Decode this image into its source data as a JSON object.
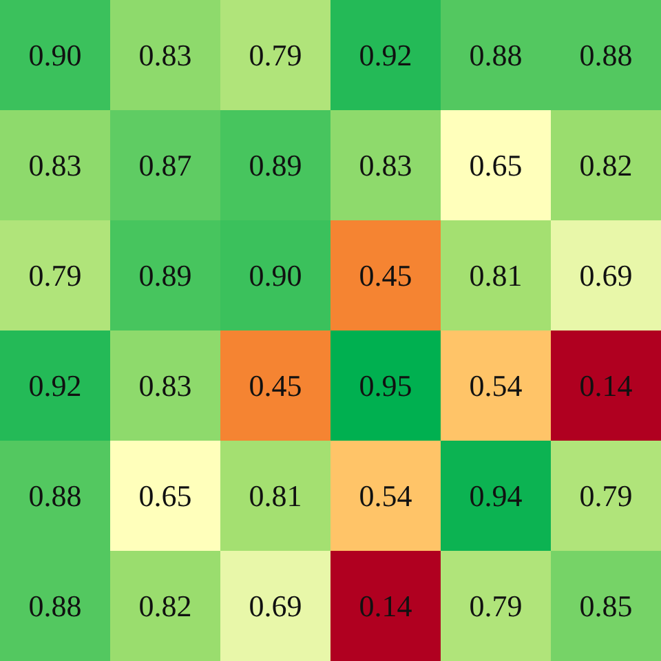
{
  "chart_data": {
    "type": "heatmap",
    "categories": [
      null,
      null,
      null,
      null,
      null,
      null
    ],
    "y_categories": [
      null,
      null,
      null,
      null,
      null,
      null
    ],
    "data_labels": true,
    "cells": [
      [
        0.9,
        0.83,
        0.79,
        0.92,
        0.88,
        0.88
      ],
      [
        0.83,
        0.87,
        0.89,
        0.83,
        0.65,
        0.82
      ],
      [
        0.79,
        0.89,
        0.9,
        0.45,
        0.81,
        0.69
      ],
      [
        0.92,
        0.83,
        0.45,
        0.95,
        0.54,
        0.14
      ],
      [
        0.88,
        0.65,
        0.81,
        0.54,
        0.94,
        0.79
      ],
      [
        0.88,
        0.82,
        0.69,
        0.14,
        0.79,
        0.85
      ]
    ],
    "cell_labels": [
      [
        "0.90",
        "0.83",
        "0.79",
        "0.92",
        "0.88",
        "0.88"
      ],
      [
        "0.83",
        "0.87",
        "0.89",
        "0.83",
        "0.65",
        "0.82"
      ],
      [
        "0.79",
        "0.89",
        "0.90",
        "0.45",
        "0.81",
        "0.69"
      ],
      [
        "0.92",
        "0.83",
        "0.45",
        "0.95",
        "0.54",
        "0.14"
      ],
      [
        "0.88",
        "0.65",
        "0.81",
        "0.54",
        "0.94",
        "0.79"
      ],
      [
        "0.88",
        "0.82",
        "0.69",
        "0.14",
        "0.79",
        "0.85"
      ]
    ]
  }
}
